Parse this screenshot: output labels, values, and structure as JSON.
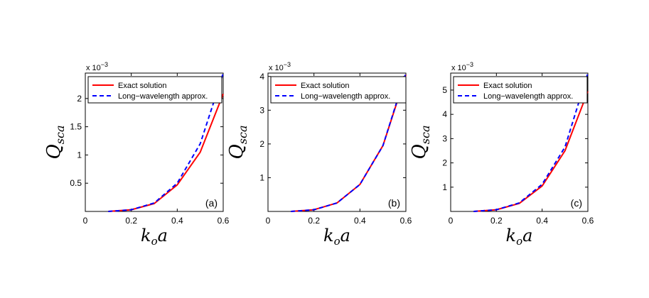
{
  "chart_data": [
    {
      "type": "line",
      "panel_label": "(a)",
      "x": [
        0.1,
        0.2,
        0.3,
        0.4,
        0.5,
        0.6
      ],
      "xlim": [
        0,
        0.6
      ],
      "xticks": [
        "0",
        "0.2",
        "0.4",
        "0.6"
      ],
      "xlabel": {
        "base": "k",
        "sub": "o",
        "tail": "a"
      },
      "ylabel": {
        "base": "Q",
        "sub": "sca"
      },
      "ylim": [
        0,
        2.45
      ],
      "yticks": [
        "0.5",
        "1",
        "1.5",
        "2"
      ],
      "y_multiplier": {
        "base": "x 10",
        "exp": "−3"
      },
      "legend": [
        "Exact solution",
        "Long−wavelength approx."
      ],
      "series": [
        {
          "name": "Exact solution",
          "color": "#ff0000",
          "style": "solid",
          "values": [
            0.0,
            0.03,
            0.14,
            0.47,
            1.05,
            2.08
          ]
        },
        {
          "name": "Long−wavelength approx.",
          "color": "#0000ff",
          "style": "dashed",
          "values": [
            0.0,
            0.03,
            0.15,
            0.5,
            1.2,
            2.45
          ]
        }
      ]
    },
    {
      "type": "line",
      "panel_label": "(b)",
      "x": [
        0.1,
        0.2,
        0.3,
        0.4,
        0.5,
        0.6
      ],
      "xlim": [
        0,
        0.6
      ],
      "xticks": [
        "0",
        "0.2",
        "0.4",
        "0.6"
      ],
      "xlabel": {
        "base": "k",
        "sub": "o",
        "tail": "a"
      },
      "ylabel": {
        "base": "Q",
        "sub": "sca"
      },
      "ylim": [
        0,
        4.1
      ],
      "yticks": [
        "1",
        "2",
        "3",
        "4"
      ],
      "y_multiplier": {
        "base": "x 10",
        "exp": "−3"
      },
      "legend": [
        "Exact solution",
        "Long−wavelength approx."
      ],
      "series": [
        {
          "name": "Exact solution",
          "color": "#ff0000",
          "style": "solid",
          "values": [
            0.0,
            0.05,
            0.25,
            0.8,
            1.95,
            4.05
          ]
        },
        {
          "name": "Long−wavelength approx.",
          "color": "#0000ff",
          "style": "dashed",
          "values": [
            0.0,
            0.05,
            0.25,
            0.8,
            1.95,
            4.1
          ]
        }
      ]
    },
    {
      "type": "line",
      "panel_label": "(c)",
      "x": [
        0.1,
        0.2,
        0.3,
        0.4,
        0.5,
        0.6
      ],
      "xlim": [
        0,
        0.6
      ],
      "xticks": [
        "0",
        "0.2",
        "0.4",
        "0.6"
      ],
      "xlabel": {
        "base": "k",
        "sub": "o",
        "tail": "a"
      },
      "ylabel": {
        "base": "Q",
        "sub": "sca"
      },
      "ylim": [
        0,
        5.7
      ],
      "yticks": [
        "1",
        "2",
        "3",
        "4",
        "5"
      ],
      "y_multiplier": {
        "base": "x 10",
        "exp": "−3"
      },
      "legend": [
        "Exact solution",
        "Long−wavelength approx."
      ],
      "series": [
        {
          "name": "Exact solution",
          "color": "#ff0000",
          "style": "solid",
          "values": [
            0.0,
            0.07,
            0.33,
            1.05,
            2.5,
            4.95
          ]
        },
        {
          "name": "Long−wavelength approx.",
          "color": "#0000ff",
          "style": "dashed",
          "values": [
            0.0,
            0.07,
            0.35,
            1.12,
            2.65,
            5.7
          ]
        }
      ]
    }
  ]
}
